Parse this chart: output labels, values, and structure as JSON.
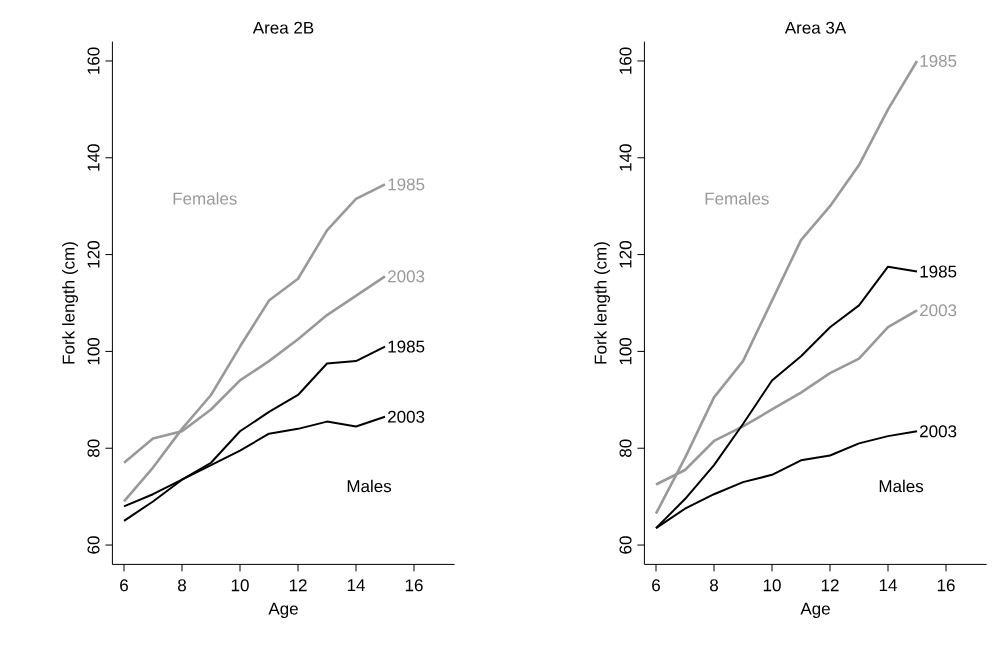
{
  "chart_data": [
    {
      "type": "line",
      "title": "Area 2B",
      "xlabel": "Age",
      "ylabel": "Fork length (cm)",
      "x": [
        6,
        7,
        8,
        9,
        10,
        11,
        12,
        13,
        14,
        15
      ],
      "series": [
        {
          "name": "1985",
          "color": "#999999",
          "values": [
            69,
            76,
            84,
            91,
            101,
            110.5,
            115,
            125,
            131.5,
            134.5
          ]
        },
        {
          "name": "2003",
          "color": "#999999",
          "values": [
            77,
            82,
            83.5,
            88,
            94,
            98,
            102.5,
            107.5,
            111.5,
            115.5
          ]
        },
        {
          "name": "1985",
          "color": "#000000",
          "values": [
            65,
            69,
            73.5,
            77,
            83.5,
            87.5,
            91,
            97.5,
            98,
            101
          ]
        },
        {
          "name": "2003",
          "color": "#000000",
          "values": [
            68,
            70.5,
            73.5,
            76.5,
            79.5,
            83,
            84,
            85.5,
            84.5,
            86.5
          ]
        }
      ],
      "annotations": [
        "Females",
        "Males"
      ],
      "xlim": [
        5.6,
        17.4
      ],
      "ylim": [
        56,
        164
      ],
      "xticks": [
        6,
        8,
        10,
        12,
        14,
        16
      ],
      "yticks": [
        60,
        80,
        100,
        120,
        140,
        160
      ]
    },
    {
      "type": "line",
      "title": "Area 3A",
      "xlabel": "Age",
      "ylabel": "Fork length (cm)",
      "x": [
        6,
        7,
        8,
        9,
        10,
        11,
        12,
        13,
        14,
        15
      ],
      "series": [
        {
          "name": "1985",
          "color": "#999999",
          "values": [
            66.5,
            78,
            90.5,
            98,
            110.5,
            123,
            130,
            138.5,
            150,
            160
          ]
        },
        {
          "name": "2003",
          "color": "#999999",
          "values": [
            72.5,
            75.5,
            81.5,
            84.5,
            88,
            91.5,
            95.5,
            98.5,
            105,
            108.5
          ]
        },
        {
          "name": "1985",
          "color": "#000000",
          "values": [
            63.5,
            69.5,
            76.5,
            85,
            94,
            99,
            105,
            109.5,
            117.5,
            116.5
          ]
        },
        {
          "name": "2003",
          "color": "#000000",
          "values": [
            63.5,
            67.5,
            70.5,
            73,
            74.5,
            77.5,
            78.5,
            81,
            82.5,
            83.5
          ]
        }
      ],
      "annotations": [
        "Females",
        "Males"
      ],
      "xlim": [
        5.6,
        17.4
      ],
      "ylim": [
        56,
        164
      ],
      "xticks": [
        6,
        8,
        10,
        12,
        14,
        16
      ],
      "yticks": [
        60,
        80,
        100,
        120,
        140,
        160
      ]
    }
  ]
}
